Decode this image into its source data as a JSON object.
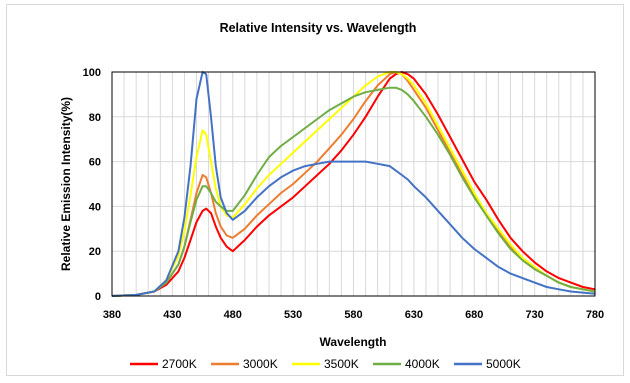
{
  "chart_data": {
    "type": "line",
    "title": "Relative Intensity vs. Wavelength",
    "xlabel": "Wavelength",
    "ylabel": "Relative Emission Intensity(%)",
    "xlim": [
      380,
      780
    ],
    "ylim": [
      0,
      100
    ],
    "xticks": [
      "380",
      "430",
      "480",
      "530",
      "580",
      "630",
      "680",
      "730",
      "780"
    ],
    "yticks": [
      "0",
      "20",
      "40",
      "60",
      "80",
      "100"
    ],
    "grid": true,
    "legend": "bottom",
    "series": [
      {
        "name": "2700K",
        "color": "#ff0000",
        "x": [
          380,
          400,
          415,
          425,
          435,
          440,
          445,
          450,
          455,
          458,
          462,
          466,
          470,
          475,
          480,
          490,
          500,
          510,
          520,
          530,
          540,
          550,
          560,
          570,
          580,
          590,
          600,
          610,
          615,
          620,
          625,
          630,
          640,
          650,
          660,
          670,
          680,
          690,
          700,
          710,
          720,
          730,
          740,
          750,
          760,
          770,
          780
        ],
        "y": [
          0,
          0.5,
          2,
          5,
          11,
          17,
          25,
          33,
          38,
          39,
          37,
          31,
          26,
          22,
          20,
          25,
          31,
          36,
          40,
          44,
          49,
          54,
          59,
          65,
          72,
          80,
          89,
          97,
          99,
          100,
          99,
          97,
          90,
          81,
          71,
          61,
          51,
          43,
          34,
          26,
          20,
          15,
          11,
          8,
          6,
          4,
          3
        ]
      },
      {
        "name": "3000K",
        "color": "#ed7d31",
        "x": [
          380,
          400,
          415,
          425,
          435,
          440,
          445,
          450,
          455,
          458,
          462,
          466,
          470,
          475,
          480,
          490,
          500,
          510,
          520,
          530,
          540,
          550,
          560,
          570,
          580,
          590,
          600,
          610,
          615,
          620,
          625,
          630,
          640,
          650,
          660,
          670,
          680,
          690,
          700,
          710,
          720,
          730,
          740,
          750,
          760,
          770,
          780
        ],
        "y": [
          0,
          0.5,
          2,
          6,
          14,
          22,
          34,
          46,
          54,
          53,
          46,
          37,
          31,
          27,
          26,
          30,
          36,
          41,
          46,
          50,
          55,
          60,
          66,
          72,
          79,
          87,
          94,
          99,
          100,
          99,
          96,
          92,
          84,
          74,
          64,
          54,
          45,
          37,
          29,
          22,
          16,
          12,
          9,
          6,
          4,
          3,
          2
        ]
      },
      {
        "name": "3500K",
        "color": "#ffff00",
        "x": [
          380,
          400,
          415,
          425,
          435,
          440,
          445,
          450,
          455,
          458,
          462,
          466,
          470,
          475,
          480,
          490,
          500,
          510,
          520,
          530,
          540,
          550,
          560,
          570,
          580,
          590,
          600,
          610,
          615,
          620,
          625,
          630,
          640,
          650,
          660,
          670,
          680,
          690,
          700,
          710,
          720,
          730,
          740,
          750,
          760,
          770,
          780
        ],
        "y": [
          0,
          0.5,
          2,
          7,
          18,
          29,
          45,
          62,
          74,
          72,
          60,
          48,
          40,
          36,
          35,
          41,
          48,
          54,
          59,
          64,
          69,
          74,
          79,
          84,
          89,
          94,
          98,
          100,
          100,
          99,
          97,
          94,
          86,
          76,
          66,
          56,
          46,
          37,
          30,
          23,
          17,
          13,
          9,
          6,
          4,
          3,
          2
        ]
      },
      {
        "name": "4000K",
        "color": "#70ad47",
        "x": [
          380,
          400,
          415,
          425,
          435,
          440,
          445,
          450,
          455,
          458,
          462,
          466,
          470,
          475,
          480,
          490,
          500,
          510,
          520,
          530,
          540,
          550,
          560,
          570,
          580,
          590,
          600,
          610,
          615,
          620,
          625,
          630,
          640,
          650,
          660,
          670,
          680,
          690,
          700,
          710,
          720,
          730,
          740,
          750,
          760,
          770,
          780
        ],
        "y": [
          0,
          0.5,
          2,
          6,
          14,
          22,
          33,
          43,
          49,
          49,
          46,
          42,
          40,
          38,
          38,
          45,
          54,
          62,
          67,
          71,
          75,
          79,
          83,
          86,
          89,
          91,
          92,
          93,
          93,
          92,
          90,
          87,
          80,
          72,
          63,
          53,
          44,
          36,
          28,
          21,
          16,
          12,
          9,
          6,
          4,
          3,
          2
        ]
      },
      {
        "name": "5000K",
        "color": "#4472c4",
        "x": [
          380,
          400,
          415,
          425,
          435,
          440,
          445,
          450,
          455,
          458,
          462,
          466,
          470,
          475,
          480,
          490,
          500,
          510,
          520,
          530,
          540,
          550,
          560,
          570,
          580,
          590,
          600,
          610,
          615,
          620,
          625,
          630,
          640,
          650,
          660,
          670,
          680,
          690,
          700,
          710,
          720,
          730,
          740,
          750,
          760,
          770,
          780
        ],
        "y": [
          0,
          0.5,
          2,
          7,
          20,
          35,
          58,
          88,
          100,
          99,
          80,
          58,
          44,
          37,
          34,
          38,
          44,
          49,
          53,
          56,
          58,
          59,
          60,
          60,
          60,
          60,
          59,
          58,
          56,
          54,
          52,
          49,
          44,
          38,
          32,
          26,
          21,
          17,
          13,
          10,
          8,
          6,
          4,
          3,
          2,
          1.5,
          1
        ]
      }
    ]
  }
}
